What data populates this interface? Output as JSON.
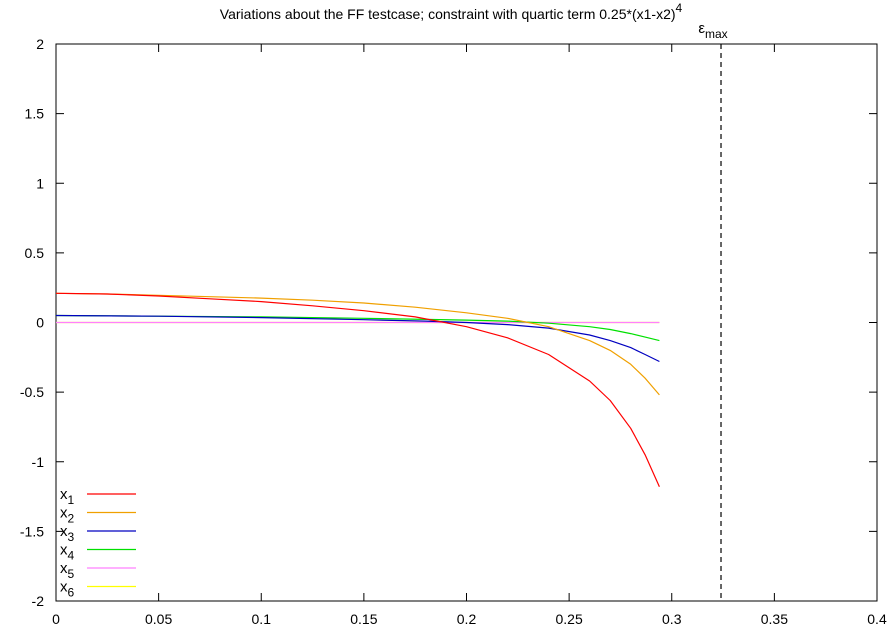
{
  "chart_data": {
    "type": "line",
    "title_main": "Variations about the FF testcase; constraint with quartic term 0.25*(x1-x2)",
    "title_exponent": "4",
    "xlim": [
      0,
      0.4
    ],
    "ylim": [
      -2,
      2
    ],
    "x_ticks": [
      0,
      0.05,
      0.1,
      0.15,
      0.2,
      0.25,
      0.3,
      0.35,
      0.4
    ],
    "x_tick_labels": [
      "0",
      "0.05",
      "0.1",
      "0.15",
      "0.2",
      "0.25",
      "0.3",
      "0.35",
      "0.4"
    ],
    "y_ticks": [
      -2,
      -1.5,
      -1,
      -0.5,
      0,
      0.5,
      1,
      1.5,
      2
    ],
    "y_tick_labels": [
      "-2",
      "-1.5",
      "-1",
      "-0.5",
      "0",
      "0.5",
      "1",
      "1.5",
      "2"
    ],
    "grid": false,
    "legend_position": "bottom-left",
    "vline": {
      "x": 0.324,
      "style": "dashed",
      "color": "#000000",
      "label_base": "ε",
      "label_sub": "max"
    },
    "series": [
      {
        "name": "x",
        "sub": "1",
        "color": "#ff0000",
        "x": [
          0,
          0.025,
          0.05,
          0.075,
          0.1,
          0.125,
          0.15,
          0.175,
          0.2,
          0.22,
          0.24,
          0.26,
          0.27,
          0.28,
          0.287,
          0.294
        ],
        "y": [
          0.21,
          0.205,
          0.19,
          0.17,
          0.15,
          0.12,
          0.085,
          0.04,
          -0.03,
          -0.11,
          -0.23,
          -0.42,
          -0.56,
          -0.76,
          -0.95,
          -1.18
        ]
      },
      {
        "name": "x",
        "sub": "2",
        "color": "#f0a000",
        "x": [
          0,
          0.025,
          0.05,
          0.075,
          0.1,
          0.125,
          0.15,
          0.175,
          0.2,
          0.22,
          0.24,
          0.26,
          0.27,
          0.28,
          0.287,
          0.294
        ],
        "y": [
          0.21,
          0.205,
          0.195,
          0.185,
          0.175,
          0.16,
          0.14,
          0.11,
          0.07,
          0.03,
          -0.03,
          -0.13,
          -0.2,
          -0.3,
          -0.4,
          -0.52
        ]
      },
      {
        "name": "x",
        "sub": "3",
        "color": "#0000c0",
        "x": [
          0,
          0.05,
          0.1,
          0.15,
          0.18,
          0.2,
          0.22,
          0.24,
          0.26,
          0.27,
          0.28,
          0.287,
          0.294
        ],
        "y": [
          0.05,
          0.045,
          0.035,
          0.02,
          0.01,
          0.0,
          -0.015,
          -0.04,
          -0.09,
          -0.13,
          -0.18,
          -0.23,
          -0.28
        ]
      },
      {
        "name": "x",
        "sub": "4",
        "color": "#00e000",
        "x": [
          0,
          0.05,
          0.1,
          0.15,
          0.18,
          0.2,
          0.22,
          0.24,
          0.26,
          0.27,
          0.28,
          0.287,
          0.294
        ],
        "y": [
          0.05,
          0.045,
          0.04,
          0.03,
          0.022,
          0.017,
          0.01,
          -0.005,
          -0.03,
          -0.05,
          -0.08,
          -0.105,
          -0.13
        ]
      },
      {
        "name": "x",
        "sub": "5",
        "color": "#ff80ff",
        "x": [
          0,
          0.294
        ],
        "y": [
          0,
          0
        ]
      },
      {
        "name": "x",
        "sub": "6",
        "color": "#ffff00",
        "x": [
          0,
          0.294
        ],
        "y": [
          0,
          0
        ]
      }
    ]
  }
}
